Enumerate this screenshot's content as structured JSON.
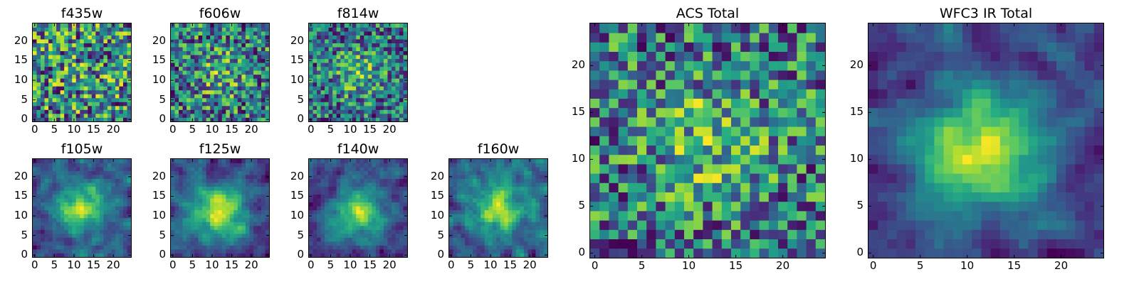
{
  "colormap": "viridis",
  "chart_data": [
    {
      "id": "f435w",
      "type": "heatmap",
      "title": "f435w",
      "grid_size": 25,
      "xlim": [
        -0.5,
        24.5
      ],
      "ylim": [
        -0.5,
        24.5
      ],
      "xticks": [
        "0",
        "5",
        "10",
        "15",
        "20"
      ],
      "yticks": [
        "0",
        "5",
        "10",
        "15",
        "20"
      ],
      "peak": [
        12,
        12
      ],
      "peak_strength": 0.05,
      "noise_level": 0.55,
      "smooth": false,
      "seed": 11
    },
    {
      "id": "f606w",
      "type": "heatmap",
      "title": "f606w",
      "grid_size": 25,
      "xlim": [
        -0.5,
        24.5
      ],
      "ylim": [
        -0.5,
        24.5
      ],
      "xticks": [
        "0",
        "5",
        "10",
        "15",
        "20"
      ],
      "yticks": [
        "0",
        "5",
        "10",
        "15",
        "20"
      ],
      "peak": [
        12,
        12
      ],
      "peak_strength": 0.25,
      "noise_level": 0.55,
      "smooth": false,
      "seed": 23
    },
    {
      "id": "f814w",
      "type": "heatmap",
      "title": "f814w",
      "grid_size": 25,
      "xlim": [
        -0.5,
        24.5
      ],
      "ylim": [
        -0.5,
        24.5
      ],
      "xticks": [
        "0",
        "5",
        "10",
        "15",
        "20"
      ],
      "yticks": [
        "0",
        "5",
        "10",
        "15",
        "20"
      ],
      "peak": [
        12,
        12
      ],
      "peak_strength": 0.35,
      "noise_level": 0.55,
      "smooth": false,
      "seed": 37
    },
    {
      "id": "f105w",
      "type": "heatmap",
      "title": "f105w",
      "grid_size": 25,
      "xlim": [
        -0.5,
        24.5
      ],
      "ylim": [
        -0.5,
        24.5
      ],
      "xticks": [
        "0",
        "5",
        "10",
        "15",
        "20"
      ],
      "yticks": [
        "0",
        "5",
        "10",
        "15",
        "20"
      ],
      "peak": [
        12,
        12
      ],
      "peak_strength": 0.55,
      "noise_level": 0.45,
      "smooth": true,
      "seed": 41
    },
    {
      "id": "f125w",
      "type": "heatmap",
      "title": "f125w",
      "grid_size": 25,
      "xlim": [
        -0.5,
        24.5
      ],
      "ylim": [
        -0.5,
        24.5
      ],
      "xticks": [
        "0",
        "5",
        "10",
        "15",
        "20"
      ],
      "yticks": [
        "0",
        "5",
        "10",
        "15",
        "20"
      ],
      "peak": [
        12,
        11
      ],
      "peak_strength": 0.6,
      "noise_level": 0.4,
      "smooth": true,
      "seed": 53
    },
    {
      "id": "f140w",
      "type": "heatmap",
      "title": "f140w",
      "grid_size": 25,
      "xlim": [
        -0.5,
        24.5
      ],
      "ylim": [
        -0.5,
        24.5
      ],
      "xticks": [
        "0",
        "5",
        "10",
        "15",
        "20"
      ],
      "yticks": [
        "0",
        "5",
        "10",
        "15",
        "20"
      ],
      "peak": [
        12,
        11
      ],
      "peak_strength": 0.6,
      "noise_level": 0.45,
      "smooth": true,
      "seed": 67
    },
    {
      "id": "f160w",
      "type": "heatmap",
      "title": "f160w",
      "grid_size": 25,
      "xlim": [
        -0.5,
        24.5
      ],
      "ylim": [
        -0.5,
        24.5
      ],
      "xticks": [
        "0",
        "5",
        "10",
        "15",
        "20"
      ],
      "yticks": [
        "0",
        "5",
        "10",
        "15",
        "20"
      ],
      "peak": [
        12,
        12
      ],
      "peak_strength": 0.5,
      "noise_level": 0.45,
      "smooth": true,
      "seed": 79
    },
    {
      "id": "acs-total",
      "type": "heatmap",
      "title": "ACS Total",
      "grid_size": 25,
      "xlim": [
        -0.5,
        24.5
      ],
      "ylim": [
        -0.5,
        24.5
      ],
      "xticks": [
        "0",
        "5",
        "10",
        "15",
        "20"
      ],
      "yticks": [
        "0",
        "5",
        "10",
        "15",
        "20"
      ],
      "peak": [
        12,
        12
      ],
      "peak_strength": 0.3,
      "noise_level": 0.55,
      "smooth": false,
      "seed": 97
    },
    {
      "id": "wfc3-ir-total",
      "type": "heatmap",
      "title": "WFC3 IR Total",
      "grid_size": 25,
      "xlim": [
        -0.5,
        24.5
      ],
      "ylim": [
        -0.5,
        24.5
      ],
      "xticks": [
        "0",
        "5",
        "10",
        "15",
        "20"
      ],
      "yticks": [
        "0",
        "5",
        "10",
        "15",
        "20"
      ],
      "peak": [
        12,
        11
      ],
      "peak_strength": 0.65,
      "noise_level": 0.35,
      "smooth": true,
      "seed": 101
    }
  ]
}
